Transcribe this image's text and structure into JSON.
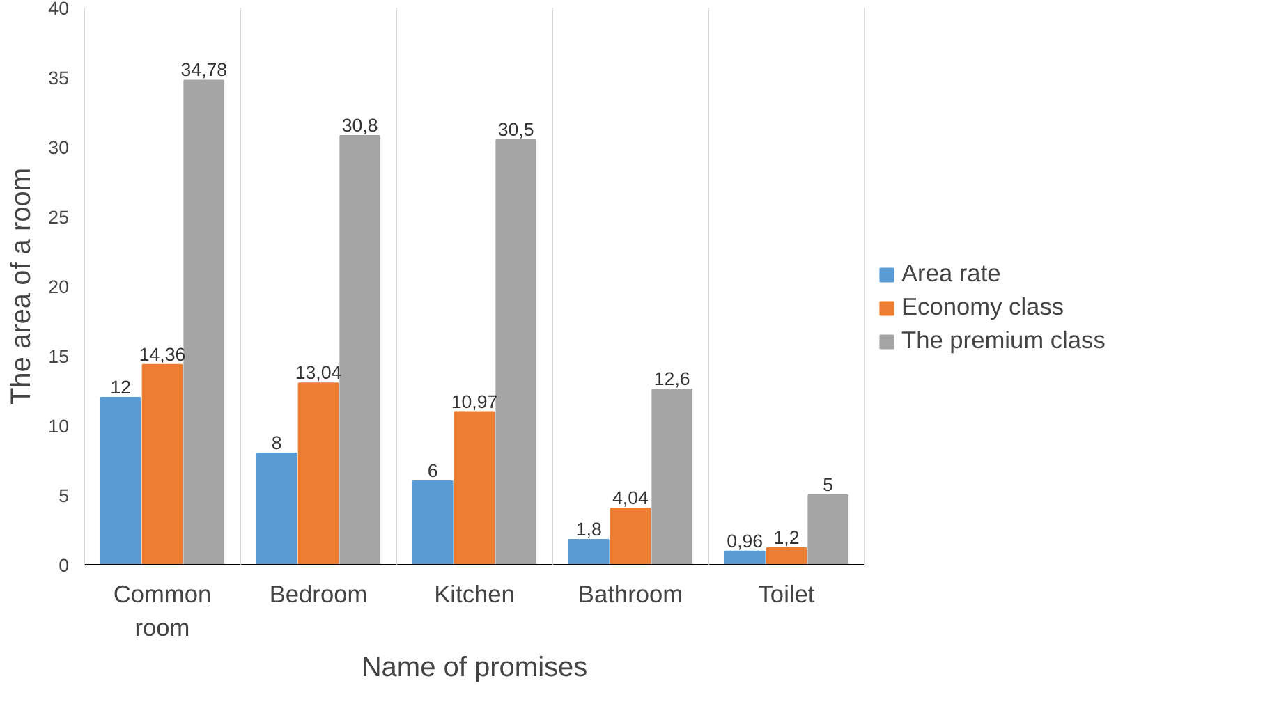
{
  "chart_data": {
    "type": "bar",
    "xlabel": "Name of promises",
    "ylabel": "The area of a room",
    "categories": [
      "Common room",
      "Bedroom",
      "Kitchen",
      "Bathroom",
      "Toilet"
    ],
    "series": [
      {
        "name": "Area rate",
        "color": "#5b9bd5",
        "values": [
          12,
          8,
          6,
          1.8,
          0.96
        ],
        "value_labels": [
          "12",
          "8",
          "6",
          "1,8",
          "0,96"
        ]
      },
      {
        "name": "Economy class",
        "color": "#ed7d31",
        "values": [
          14.36,
          13.04,
          10.97,
          4.04,
          1.2
        ],
        "value_labels": [
          "14,36",
          "13,04",
          "10,97",
          "4,04",
          "1,2"
        ]
      },
      {
        "name": "The premium class",
        "color": "#a5a5a5",
        "values": [
          34.78,
          30.8,
          30.5,
          12.6,
          5
        ],
        "value_labels": [
          "34,78",
          "30,8",
          "30,5",
          "12,6",
          "5"
        ]
      }
    ],
    "ylim": [
      0,
      40
    ],
    "yticks": [
      0,
      5,
      10,
      15,
      20,
      25,
      30,
      35,
      40
    ],
    "grid": "x",
    "legend": "right"
  }
}
